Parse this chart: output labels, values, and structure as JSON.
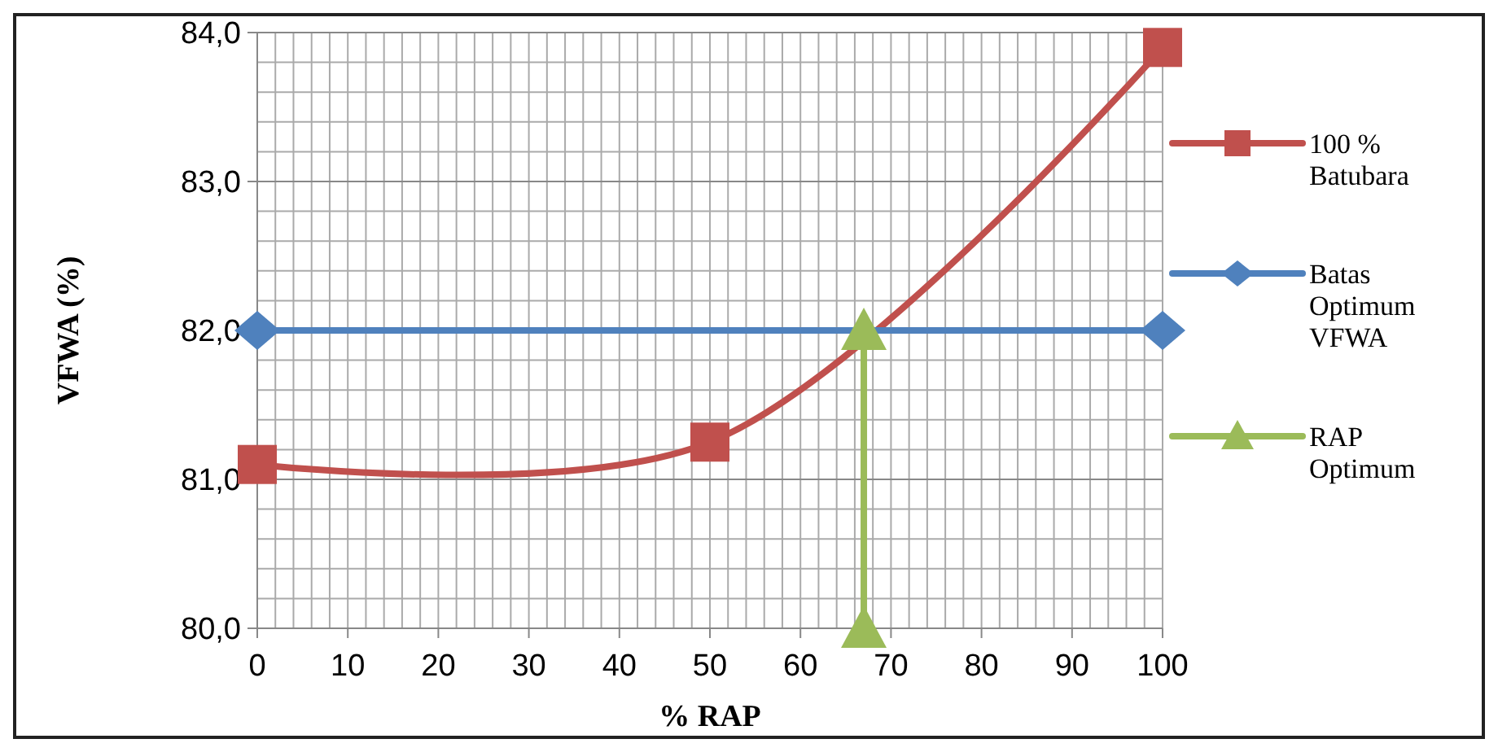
{
  "chart_data": {
    "type": "line",
    "xlabel": "% RAP",
    "ylabel": "VFWA (%)",
    "xlim": [
      0,
      100
    ],
    "ylim": [
      80,
      84
    ],
    "xticks": [
      0,
      {
        "value": 2,
        "label": null
      },
      {
        "value": 4,
        "label": null
      },
      {
        "value": 6,
        "label": null
      },
      {
        "value": 8,
        "label": null
      },
      10,
      {
        "value": 12,
        "label": null
      },
      {
        "value": 14,
        "label": null
      },
      {
        "value": 16,
        "label": null
      },
      {
        "value": 18,
        "label": null
      },
      20,
      {
        "value": 22,
        "label": null
      },
      {
        "value": 24,
        "label": null
      },
      {
        "value": 26,
        "label": null
      },
      {
        "value": 28,
        "label": null
      },
      30,
      {
        "value": 32,
        "label": null
      },
      {
        "value": 34,
        "label": null
      },
      {
        "value": 36,
        "label": null
      },
      {
        "value": 38,
        "label": null
      },
      40,
      {
        "value": 42,
        "label": null
      },
      {
        "value": 44,
        "label": null
      },
      {
        "value": 46,
        "label": null
      },
      {
        "value": 48,
        "label": null
      },
      50,
      {
        "value": 52,
        "label": null
      },
      {
        "value": 54,
        "label": null
      },
      {
        "value": 56,
        "label": null
      },
      {
        "value": 58,
        "label": null
      },
      60,
      {
        "value": 62,
        "label": null
      },
      {
        "value": 64,
        "label": null
      },
      {
        "value": 66,
        "label": null
      },
      {
        "value": 68,
        "label": null
      },
      70,
      {
        "value": 72,
        "label": null
      },
      {
        "value": 74,
        "label": null
      },
      {
        "value": 76,
        "label": null
      },
      {
        "value": 78,
        "label": null
      },
      80,
      {
        "value": 82,
        "label": null
      },
      {
        "value": 84,
        "label": null
      },
      {
        "value": 86,
        "label": null
      },
      {
        "value": 88,
        "label": null
      },
      90,
      {
        "value": 92,
        "label": null
      },
      {
        "value": 94,
        "label": null
      },
      {
        "value": 96,
        "label": null
      },
      {
        "value": 98,
        "label": null
      },
      100
    ],
    "yticks": [
      {
        "value": 80,
        "label": "80,0"
      },
      {
        "value": 80.2,
        "label": null
      },
      {
        "value": 80.4,
        "label": null
      },
      {
        "value": 80.6,
        "label": null
      },
      {
        "value": 80.8,
        "label": null
      },
      {
        "value": 81,
        "label": "81,0"
      },
      {
        "value": 81.2,
        "label": null
      },
      {
        "value": 81.4,
        "label": null
      },
      {
        "value": 81.6,
        "label": null
      },
      {
        "value": 81.8,
        "label": null
      },
      {
        "value": 82,
        "label": "82,0"
      },
      {
        "value": 82.2,
        "label": null
      },
      {
        "value": 82.4,
        "label": null
      },
      {
        "value": 82.6,
        "label": null
      },
      {
        "value": 82.8,
        "label": null
      },
      {
        "value": 83,
        "label": "83,0"
      },
      {
        "value": 83.2,
        "label": null
      },
      {
        "value": 83.4,
        "label": null
      },
      {
        "value": 83.6,
        "label": null
      },
      {
        "value": 83.8,
        "label": null
      },
      {
        "value": 84,
        "label": "84,0"
      }
    ],
    "grid": true,
    "legend": "right",
    "series": [
      {
        "name": "100 % Batubara",
        "color": "#c0504d",
        "x": [
          0,
          50,
          100
        ],
        "values": [
          81.1,
          81.25,
          83.9
        ],
        "marker": "square"
      },
      {
        "name": "Batas Optimum VFWA",
        "color": "#4f81bd",
        "x": [
          0,
          100
        ],
        "values": [
          82,
          82
        ],
        "marker": "diamond"
      },
      {
        "name": "RAP Optimum",
        "color": "#9bbb59",
        "x": [
          67,
          67
        ],
        "values": [
          80,
          82
        ],
        "marker": "triangle"
      }
    ]
  }
}
